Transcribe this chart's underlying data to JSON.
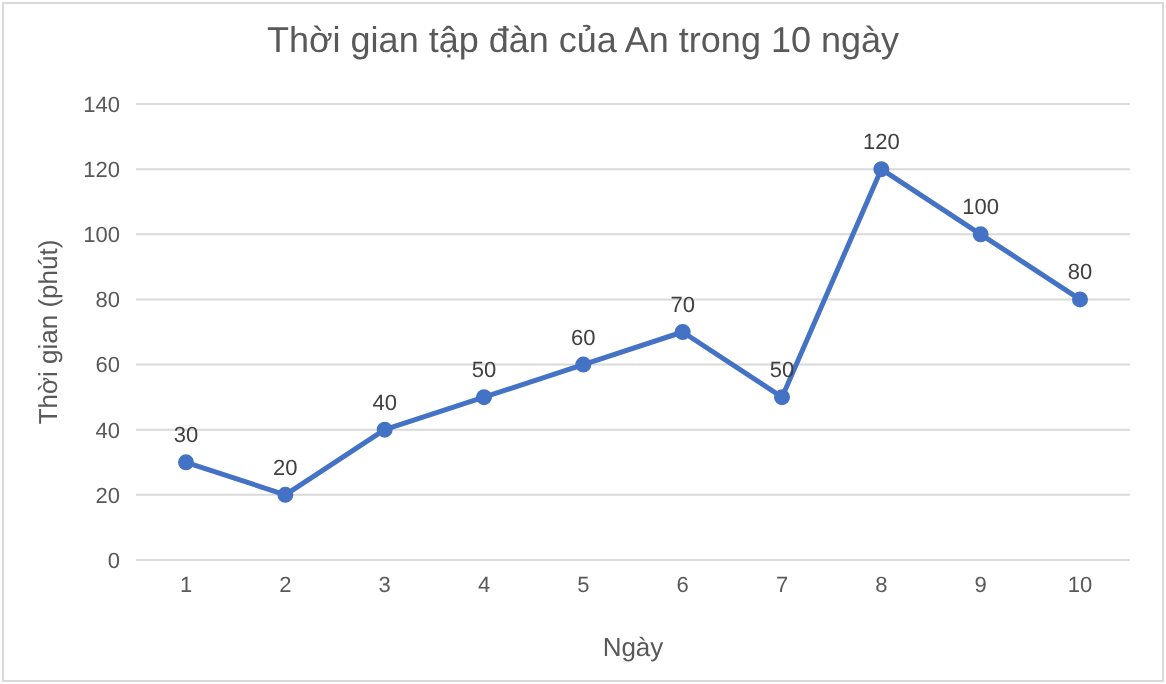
{
  "chart_data": {
    "type": "line",
    "title": "Thời gian tập đàn của An trong 10 ngày",
    "xlabel": "Ngày",
    "ylabel": "Thời gian (phút)",
    "categories": [
      "1",
      "2",
      "3",
      "4",
      "5",
      "6",
      "7",
      "8",
      "9",
      "10"
    ],
    "series": [
      {
        "color": "#4472c4",
        "values": [
          30,
          20,
          40,
          50,
          60,
          70,
          50,
          120,
          100,
          80
        ]
      }
    ],
    "ylim": [
      0,
      140
    ],
    "yticks": [
      0,
      20,
      40,
      60,
      80,
      100,
      120,
      140
    ],
    "grid": "y",
    "marker": "circle",
    "data_labels": true
  }
}
